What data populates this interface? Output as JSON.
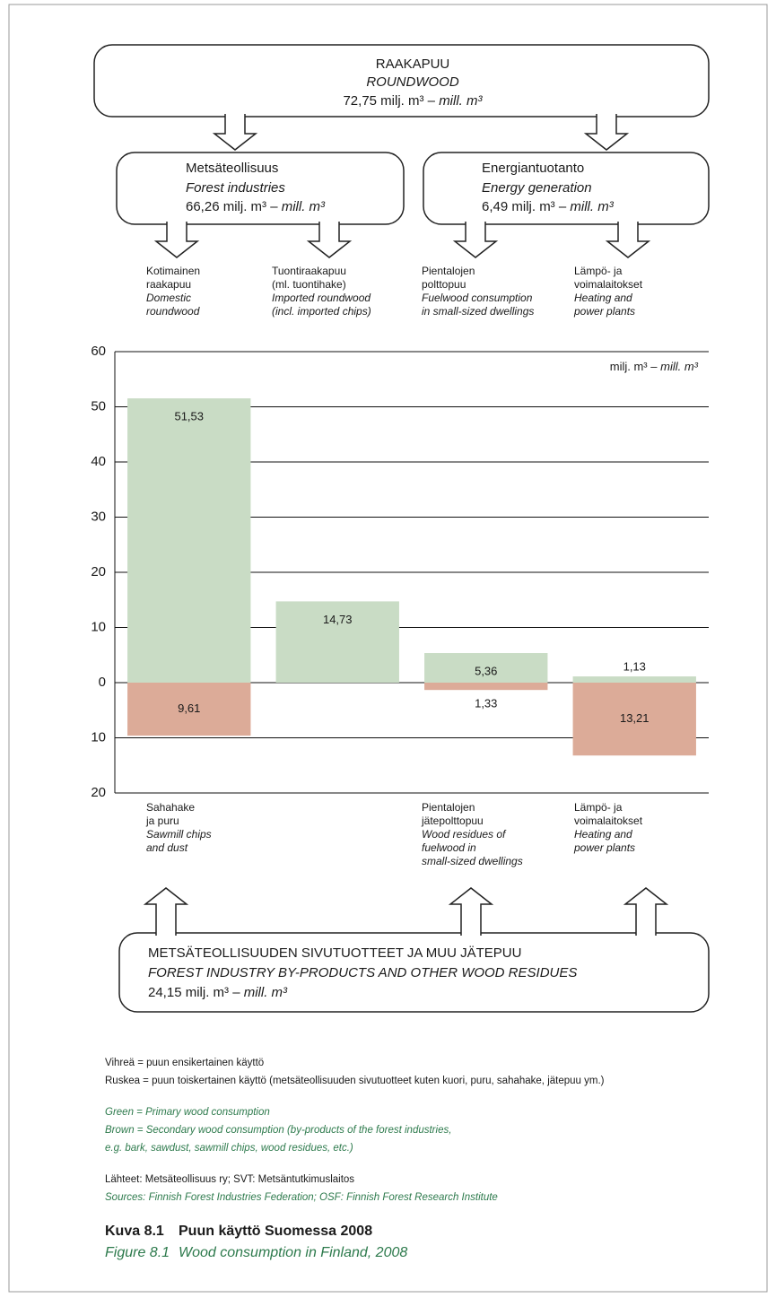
{
  "flows": {
    "roundwood": {
      "name": "RAAKAPUU",
      "name_en": "ROUNDWOOD",
      "amount": "72,75 milj. m³ –",
      "amount_en": "mill. m³"
    },
    "forest_industries": {
      "name": "Metsäteollisuus",
      "name_en": "Forest industries",
      "amount": "66,26 milj. m³ –",
      "amount_en": "mill. m³"
    },
    "energy": {
      "name": "Energiantuotanto",
      "name_en": "Energy generation",
      "amount": "6,49 milj. m³ –",
      "amount_en": "mill. m³"
    },
    "residues": {
      "name": "METSÄTEOLLISUUDEN SIVUTUOTTEET JA MUU JÄTEPUU",
      "name_en": "FOREST INDUSTRY BY-PRODUCTS AND OTHER WOOD RESIDUES",
      "amount": "24,15 milj. m³ –",
      "amount_en": "mill. m³"
    }
  },
  "chart_data": {
    "type": "bar",
    "categories": [
      "Kotimainen\nraakapuu",
      "Tuontiraakapuu\n(ml. tuontihake)",
      "Pientalojen\npolttopuu",
      "Lämpö- ja\nvoimalaitokset"
    ],
    "categories_en": [
      "Domestic\nroundwood",
      "Imported roundwood\n(incl. imported chips)",
      "Fuelwood consumption\nin small-sized dwellings",
      "Heating and\npower plants"
    ],
    "bottom_categories": [
      "Sahahake\nja puru",
      null,
      "Pientalojen\njätepolttopuu",
      "Lämpö- ja\nvoimalaitokset"
    ],
    "bottom_categories_en": [
      "Sawmill chips\nand dust",
      null,
      "Wood residues of\nfuelwood in\nsmall-sized dwellings",
      "Heating and\npower plants"
    ],
    "series": [
      {
        "color": "#c9dcc5",
        "values": [
          51.53,
          14.73,
          5.36,
          1.13
        ],
        "value_labels": [
          "51,53",
          "14,73",
          "5,36",
          "1,13"
        ]
      },
      {
        "color": "#dcab98",
        "values": [
          -9.61,
          null,
          -1.33,
          -13.21
        ],
        "value_labels": [
          "9,61",
          null,
          "1,33",
          "13,21"
        ]
      }
    ],
    "ylim": [
      -20,
      60
    ],
    "yticks": [
      60,
      50,
      40,
      30,
      20,
      10,
      0,
      {
        "value": -10,
        "label": "10"
      },
      {
        "value": -20,
        "label": "20"
      }
    ],
    "grid": true,
    "unit": "milj. m³ –",
    "unit_en": "mill. m³"
  },
  "notes": {
    "green_fi": "Vihreä = puun ensikertainen käyttö",
    "brown_fi": "Ruskea = puun toiskertainen käyttö (metsäteollisuuden sivutuotteet kuten kuori, puru, sahahake, jätepuu ym.)",
    "green_en": "Green = Primary wood consumption",
    "brown_en": "Brown = Secondary wood consumption (by-products of the forest industries,\ne.g. bark, sawdust, sawmill chips, wood residues, etc.)",
    "sources_fi": "Lähteet: Metsäteollisuus ry; SVT: Metsäntutkimuslaitos",
    "sources_en": "Sources: Finnish Forest Industries Federation; OSF: Finnish Forest Research Institute"
  },
  "caption": {
    "number": "Kuva 8.1",
    "title": "Puun käyttö Suomessa 2008",
    "number_en": "Figure 8.1",
    "title_en": "Wood consumption in Finland, 2008"
  }
}
